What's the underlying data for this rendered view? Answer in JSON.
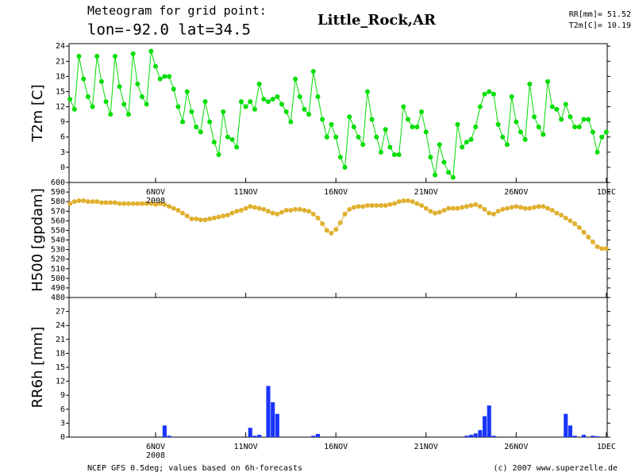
{
  "chart_data": {
    "type": "meteogram",
    "title": "Meteogram for grid point:",
    "subtitle": "lon=-92.0  lat=34.5",
    "location": "Little_Rock,AR",
    "summary": [
      "RR[mm]= 51.52",
      "T2m[C]= 10.19"
    ],
    "year_label": "2008",
    "footer_left": "NCEP GFS 0.5deg; values based on 6h-forecasts",
    "footer_right": "(c) 2007 www.superzelle.de",
    "xlim": [
      1.2,
      31.05
    ],
    "xticks": [
      {
        "value": 6,
        "label": "6NOV"
      },
      {
        "value": 11,
        "label": "11NOV"
      },
      {
        "value": 16,
        "label": "16NOV"
      },
      {
        "value": 21,
        "label": "21NOV"
      },
      {
        "value": 26,
        "label": "26NOV"
      },
      {
        "value": 31,
        "label": "1DEC"
      }
    ],
    "x": [
      1.25,
      1.5,
      1.75,
      2,
      2.25,
      2.5,
      2.75,
      3,
      3.25,
      3.5,
      3.75,
      4,
      4.25,
      4.5,
      4.75,
      5,
      5.25,
      5.5,
      5.75,
      6,
      6.25,
      6.5,
      6.75,
      7,
      7.25,
      7.5,
      7.75,
      8,
      8.25,
      8.5,
      8.75,
      9,
      9.25,
      9.5,
      9.75,
      10,
      10.25,
      10.5,
      10.75,
      11,
      11.25,
      11.5,
      11.75,
      12,
      12.25,
      12.5,
      12.75,
      13,
      13.25,
      13.5,
      13.75,
      14,
      14.25,
      14.5,
      14.75,
      15,
      15.25,
      15.5,
      15.75,
      16,
      16.25,
      16.5,
      16.75,
      17,
      17.25,
      17.5,
      17.75,
      18,
      18.25,
      18.5,
      18.75,
      19,
      19.25,
      19.5,
      19.75,
      20,
      20.25,
      20.5,
      20.75,
      21,
      21.25,
      21.5,
      21.75,
      22,
      22.25,
      22.5,
      22.75,
      23,
      23.25,
      23.5,
      23.75,
      24,
      24.25,
      24.5,
      24.75,
      25,
      25.25,
      25.5,
      25.75,
      26,
      26.25,
      26.5,
      26.75,
      27,
      27.25,
      27.5,
      27.75,
      28,
      28.25,
      28.5,
      28.75,
      29,
      29.25,
      29.5,
      29.75,
      30,
      30.25,
      30.5,
      30.75,
      31
    ],
    "panels": [
      {
        "type": "line",
        "ylabel": "T2m [C]",
        "color": "#00dd00",
        "ylim": [
          -3,
          24.5
        ],
        "yticks": [
          0,
          3,
          6,
          9,
          12,
          15,
          18,
          21,
          24
        ],
        "values": [
          13.5,
          11.5,
          22,
          17.5,
          14,
          12,
          22,
          17,
          13,
          10.5,
          22,
          16,
          12.5,
          10.5,
          22.5,
          16.5,
          14,
          12.5,
          23,
          20,
          17.5,
          18,
          18,
          15.5,
          12,
          9,
          15,
          11,
          8,
          7,
          13,
          9,
          5,
          2.5,
          11,
          6,
          5.5,
          4,
          13,
          12,
          13,
          11.5,
          16.5,
          13.5,
          13,
          13.5,
          14,
          12.5,
          11,
          9,
          17.5,
          14,
          11.5,
          10.5,
          19,
          14,
          9.5,
          6,
          8.5,
          6,
          2,
          0,
          10,
          8,
          6,
          4.5,
          15,
          9.5,
          6,
          3,
          7.5,
          4,
          2.5,
          2.5,
          12,
          9.5,
          8,
          8,
          11,
          7,
          2,
          -1.5,
          4.5,
          1,
          -1,
          -2,
          8.5,
          4,
          5,
          5.5,
          8,
          12,
          14.5,
          15,
          14.5,
          8.5,
          6,
          4.5,
          14,
          9,
          7,
          5.5,
          16.5,
          10,
          8,
          6.5,
          17,
          12,
          11.5,
          9.5,
          12.5,
          10,
          8,
          8,
          9.5,
          9.5,
          7,
          3,
          6,
          7
        ]
      },
      {
        "type": "line",
        "ylabel": "H500 [gpdam]",
        "color": "#e0b030",
        "ylim": [
          480,
          600
        ],
        "yticks": [
          480,
          490,
          500,
          510,
          520,
          530,
          540,
          550,
          560,
          570,
          580,
          590,
          600
        ],
        "values": [
          578,
          580,
          581,
          581,
          580,
          580,
          580,
          579,
          579,
          579,
          579,
          578,
          578,
          578,
          578,
          578,
          578,
          578,
          578,
          577,
          578,
          577,
          575,
          573,
          571,
          568,
          565,
          562,
          562,
          561,
          561,
          562,
          563,
          564,
          565,
          566,
          568,
          570,
          571,
          573,
          575,
          574,
          573,
          572,
          570,
          568,
          567,
          569,
          571,
          571,
          572,
          572,
          571,
          570,
          567,
          563,
          557,
          550,
          547,
          551,
          558,
          567,
          572,
          574,
          575,
          575,
          576,
          576,
          576,
          576,
          576,
          577,
          578,
          580,
          581,
          581,
          580,
          578,
          576,
          573,
          570,
          568,
          569,
          571,
          573,
          573,
          573,
          574,
          575,
          576,
          577,
          575,
          572,
          568,
          567,
          570,
          572,
          573,
          574,
          575,
          574,
          573,
          573,
          574,
          575,
          575,
          573,
          571,
          568,
          566,
          563,
          560,
          557,
          553,
          548,
          543,
          538,
          533,
          531,
          531
        ]
      },
      {
        "type": "bar",
        "ylabel": "RR6h [mm]",
        "color": "#1a35ff",
        "ylim": [
          0,
          30
        ],
        "yticks": [
          0,
          3,
          6,
          9,
          12,
          15,
          18,
          21,
          24,
          27
        ],
        "values": [
          0,
          0,
          0,
          0,
          0,
          0,
          0,
          0,
          0,
          0,
          0,
          0,
          0,
          0,
          0,
          0,
          0,
          0,
          0,
          0,
          0,
          2.5,
          0.3,
          0,
          0,
          0,
          0,
          0,
          0,
          0,
          0,
          0,
          0,
          0,
          0,
          0,
          0,
          0,
          0,
          0,
          2,
          0.3,
          0.5,
          0,
          11,
          7.5,
          5,
          0,
          0,
          0,
          0,
          0,
          0,
          0,
          0.3,
          0.7,
          0,
          0,
          0,
          0,
          0,
          0,
          0,
          0,
          0,
          0,
          0,
          0,
          0,
          0,
          0,
          0,
          0,
          0,
          0,
          0,
          0,
          0,
          0,
          0,
          0,
          0,
          0,
          0,
          0,
          0,
          0,
          0,
          0.3,
          0.5,
          0.8,
          1.5,
          4.5,
          6.8,
          0.3,
          0,
          0,
          0,
          0,
          0,
          0,
          0,
          0,
          0,
          0,
          0,
          0,
          0,
          0,
          0,
          5,
          2.5,
          0.3,
          0,
          0.5,
          0,
          0.3,
          0.2,
          0,
          0
        ]
      }
    ]
  }
}
